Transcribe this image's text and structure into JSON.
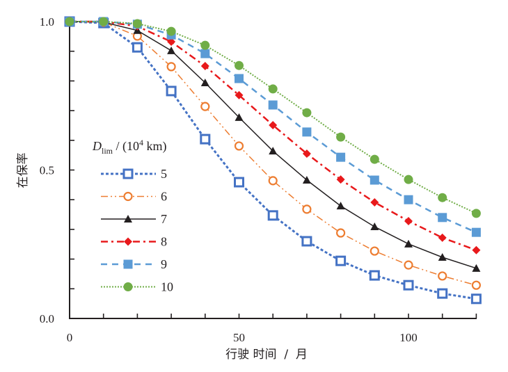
{
  "chart_data": {
    "type": "line",
    "title": "",
    "xlabel": "行驶 时间  /  月",
    "ylabel": "在保率",
    "xlim": [
      0,
      120
    ],
    "ylim": [
      0,
      1.0
    ],
    "x_ticks": [
      0,
      10,
      20,
      30,
      40,
      50,
      60,
      70,
      80,
      90,
      100,
      110,
      120
    ],
    "x_tick_labels": [
      {
        "value": 0,
        "label": "0"
      },
      {
        "value": 50,
        "label": "50"
      },
      {
        "value": 100,
        "label": "100"
      }
    ],
    "y_ticks": [
      0,
      0.1,
      0.2,
      0.3,
      0.4,
      0.5,
      0.6,
      0.7,
      0.8,
      0.9,
      1.0
    ],
    "y_tick_labels": [
      {
        "value": 0,
        "label": "0.0"
      },
      {
        "value": 0.5,
        "label": "0.5"
      },
      {
        "value": 1.0,
        "label": "1.0"
      }
    ],
    "grid": false,
    "legend": {
      "title_main": "D",
      "title_sub": "lim",
      "title_rest": " / (10",
      "title_sup": "4",
      "title_end": " km)",
      "placement": "center-left"
    },
    "x": [
      0,
      10,
      20,
      30,
      40,
      50,
      60,
      70,
      80,
      90,
      100,
      110,
      120
    ],
    "series": [
      {
        "name": "5",
        "color": "#4472c4",
        "marker": "open-square",
        "dash": "dotted-thick",
        "values": [
          1.0,
          0.995,
          0.913,
          0.766,
          0.604,
          0.459,
          0.347,
          0.26,
          0.194,
          0.145,
          0.112,
          0.084,
          0.066
        ]
      },
      {
        "name": "6",
        "color": "#ed7d31",
        "marker": "open-circle",
        "dash": "dash-dot-dot",
        "values": [
          1.0,
          0.998,
          0.951,
          0.848,
          0.714,
          0.581,
          0.464,
          0.368,
          0.288,
          0.227,
          0.18,
          0.143,
          0.112
        ]
      },
      {
        "name": "7",
        "color": "#231f20",
        "marker": "triangle",
        "dash": "solid",
        "values": [
          1.0,
          0.998,
          0.97,
          0.902,
          0.794,
          0.677,
          0.564,
          0.466,
          0.379,
          0.309,
          0.251,
          0.206,
          0.169
        ]
      },
      {
        "name": "8",
        "color": "#e8191b",
        "marker": "diamond",
        "dash": "dash-dot",
        "values": [
          1.0,
          1.0,
          0.984,
          0.932,
          0.85,
          0.752,
          0.651,
          0.555,
          0.468,
          0.391,
          0.328,
          0.272,
          0.23
        ]
      },
      {
        "name": "9",
        "color": "#5b9bd5",
        "marker": "square",
        "dash": "dashed",
        "values": [
          1.0,
          1.0,
          0.991,
          0.955,
          0.892,
          0.808,
          0.719,
          0.628,
          0.543,
          0.466,
          0.4,
          0.34,
          0.29
        ]
      },
      {
        "name": "10",
        "color": "#70ad47",
        "marker": "circle",
        "dash": "fine-dotted",
        "values": [
          1.0,
          1.0,
          0.993,
          0.967,
          0.92,
          0.852,
          0.773,
          0.693,
          0.611,
          0.536,
          0.468,
          0.407,
          0.354
        ]
      }
    ]
  }
}
